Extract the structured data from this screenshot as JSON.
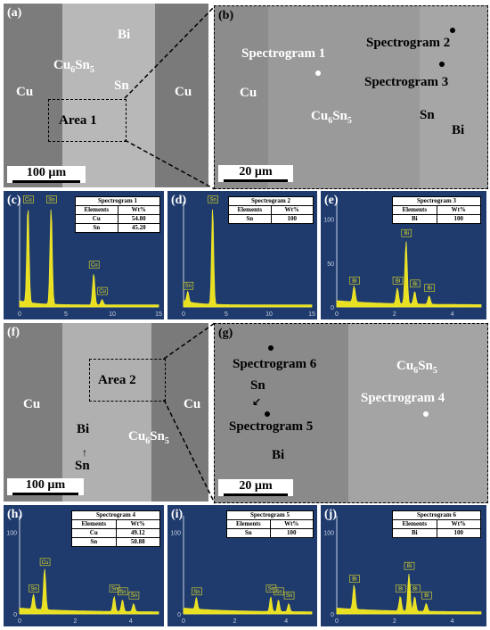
{
  "panel_labels": {
    "a": "(a)",
    "b": "(b)",
    "c": "(c)",
    "d": "(d)",
    "e": "(e)",
    "f": "(f)",
    "g": "(g)",
    "h": "(h)",
    "i": "(i)",
    "j": "(j)"
  },
  "panel_a": {
    "cu_left": "Cu",
    "cu_right": "Cu",
    "cu6sn5": "Cu",
    "cu6sn5_sub6": "6",
    "cu6sn5_sn": "Sn",
    "cu6sn5_sub5": "5",
    "bi": "Bi",
    "sn": "Sn",
    "area": "Area 1",
    "scale": "100 µm"
  },
  "panel_b": {
    "spec1": "Spectrogram 1",
    "spec2": "Spectrogram 2",
    "spec3": "Spectrogram 3",
    "cu": "Cu",
    "cu6sn5": "Cu",
    "sub6": "6",
    "sn_part": "Sn",
    "sub5": "5",
    "sn": "Sn",
    "bi": "Bi",
    "scale": "20 µm"
  },
  "panel_f": {
    "cu_left": "Cu",
    "cu_right": "Cu",
    "area": "Area 2",
    "bi": "Bi",
    "sn": "Sn",
    "cu6sn5": "Cu",
    "sub6": "6",
    "sn_part": "Sn",
    "sub5": "5",
    "scale": "100 µm"
  },
  "panel_g": {
    "spec6": "Spectrogram 6",
    "sn": "Sn",
    "spec5": "Spectrogram 5",
    "bi": "Bi",
    "cu6sn5": "Cu",
    "sub6": "6",
    "sn_part": "Sn",
    "sub5": "5",
    "spec4": "Spectrogram 4",
    "scale": "20 µm"
  },
  "tables": {
    "c": {
      "title": "Spectrogram 1",
      "h1": "Elements",
      "h2": "Wt%",
      "rows": [
        [
          "Cu",
          "54.80"
        ],
        [
          "Sn",
          "45.20"
        ]
      ]
    },
    "d": {
      "title": "Spectrogram 2",
      "h1": "Elements",
      "h2": "Wt%",
      "rows": [
        [
          "Sn",
          "100"
        ]
      ]
    },
    "e": {
      "title": "Spectrogram 3",
      "h1": "Elements",
      "h2": "Wt%",
      "rows": [
        [
          "Bi",
          "100"
        ]
      ]
    },
    "h": {
      "title": "Spectrogram 4",
      "h1": "Elements",
      "h2": "Wt%",
      "rows": [
        [
          "Cu",
          "49.12"
        ],
        [
          "Sn",
          "50.88"
        ]
      ]
    },
    "i": {
      "title": "Spectrogram 5",
      "h1": "Elements",
      "h2": "Wt%",
      "rows": [
        [
          "Sn",
          "100"
        ]
      ]
    },
    "j": {
      "title": "Spectrogram 6",
      "h1": "Elements",
      "h2": "Wt%",
      "rows": [
        [
          "Bi",
          "100"
        ]
      ]
    }
  },
  "chart_data": [
    {
      "panel": "c",
      "type": "line",
      "xlim": [
        0,
        15
      ],
      "x_ticks": [
        "0",
        "5",
        "10",
        "15"
      ],
      "y_ticks": [],
      "peaks": [
        {
          "label": "Cu",
          "x": 0.9
        },
        {
          "label": "Sn",
          "x": 3.4
        },
        {
          "label": "Cu",
          "x": 8.0
        },
        {
          "label": "Cu",
          "x": 8.9
        }
      ]
    },
    {
      "panel": "d",
      "type": "line",
      "xlim": [
        0,
        15
      ],
      "x_ticks": [
        "0",
        "5",
        "10",
        "15"
      ],
      "y_ticks": [],
      "peaks": [
        {
          "label": "Sn",
          "x": 0.5
        },
        {
          "label": "Sn",
          "x": 3.4
        }
      ]
    },
    {
      "panel": "e",
      "type": "line",
      "xlim": [
        0,
        5
      ],
      "x_ticks": [
        "0",
        "2",
        "4"
      ],
      "y_ticks": [
        "0",
        "50",
        "100"
      ],
      "peaks": [
        {
          "label": "Bi",
          "x": 0.6
        },
        {
          "label": "Bi",
          "x": 2.1
        },
        {
          "label": "Bi",
          "x": 2.4
        },
        {
          "label": "Bi",
          "x": 2.7
        },
        {
          "label": "Bi",
          "x": 3.2
        }
      ]
    },
    {
      "panel": "h",
      "type": "line",
      "xlim": [
        0,
        5
      ],
      "x_ticks": [
        "0",
        "2",
        "4"
      ],
      "y_ticks": [
        "0",
        "100"
      ],
      "peaks": [
        {
          "label": "Sn",
          "x": 0.5
        },
        {
          "label": "Cu",
          "x": 0.9
        },
        {
          "label": "Sn",
          "x": 3.4
        },
        {
          "label": "Sn",
          "x": 3.7
        },
        {
          "label": "Sn",
          "x": 4.1
        }
      ]
    },
    {
      "panel": "i",
      "type": "line",
      "xlim": [
        0,
        5
      ],
      "x_ticks": [
        "0",
        "2",
        "4"
      ],
      "y_ticks": [
        "0",
        "100"
      ],
      "peaks": [
        {
          "label": "Sn",
          "x": 0.5
        },
        {
          "label": "Sn",
          "x": 3.4
        },
        {
          "label": "Sn",
          "x": 3.7
        },
        {
          "label": "Sn",
          "x": 4.1
        }
      ]
    },
    {
      "panel": "j",
      "type": "line",
      "xlim": [
        0,
        5
      ],
      "x_ticks": [
        "0",
        "2",
        "4"
      ],
      "y_ticks": [
        "0",
        "100"
      ],
      "peaks": [
        {
          "label": "Bi",
          "x": 0.6
        },
        {
          "label": "Bi",
          "x": 2.2
        },
        {
          "label": "Bi",
          "x": 2.5
        },
        {
          "label": "Bi",
          "x": 2.7
        },
        {
          "label": "Bi",
          "x": 3.1
        }
      ]
    }
  ]
}
